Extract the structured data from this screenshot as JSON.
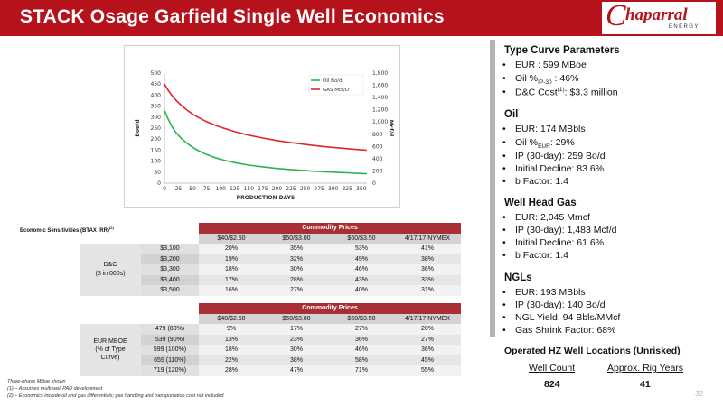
{
  "header": {
    "title": "STACK Osage Garfield Single Well Economics",
    "logo_text": "haparral",
    "logo_c": "C",
    "logo_sub": "ENERGY"
  },
  "chart_data": {
    "type": "line",
    "xlabel": "PRODUCTION DAYS",
    "ylabel_left": "Boe/d",
    "ylabel_right": "Mcf/d",
    "x_ticks": [
      0,
      25,
      50,
      75,
      100,
      125,
      150,
      175,
      200,
      225,
      250,
      275,
      300,
      325,
      350
    ],
    "y_left_ticks": [
      0,
      50,
      100,
      150,
      200,
      250,
      300,
      350,
      400,
      450,
      500
    ],
    "y_right_ticks": [
      "0",
      "200",
      "400",
      "600",
      "800",
      "1,000",
      "1,200",
      "1,400",
      "1,600",
      "1,800"
    ],
    "y_right_values": [
      0,
      200,
      400,
      600,
      800,
      1000,
      1200,
      1400,
      1600,
      1800
    ],
    "xlim": [
      0,
      360
    ],
    "ylim_left": [
      0,
      500
    ],
    "ylim_right": [
      0,
      1800
    ],
    "legend_position": "top-right",
    "series": [
      {
        "name": "Oil Bo/d",
        "color": "#2db34a",
        "axis": "left",
        "x": [
          0,
          5,
          10,
          15,
          20,
          30,
          40,
          50,
          60,
          75,
          90,
          100,
          125,
          150,
          175,
          200,
          225,
          250,
          275,
          300,
          325,
          350,
          360
        ],
        "y": [
          330,
          300,
          274,
          250,
          232,
          203,
          181,
          163,
          148,
          130,
          116,
          108,
          93,
          82,
          74,
          67,
          62,
          57,
          53,
          50,
          47,
          44,
          43
        ]
      },
      {
        "name": "GAS Mcf/D",
        "color": "#e0262b",
        "axis": "right",
        "x": [
          0,
          5,
          10,
          15,
          20,
          30,
          40,
          50,
          60,
          75,
          90,
          100,
          125,
          150,
          175,
          200,
          225,
          250,
          275,
          300,
          325,
          350,
          360
        ],
        "y": [
          1620,
          1540,
          1475,
          1415,
          1362,
          1270,
          1195,
          1130,
          1075,
          1005,
          948,
          915,
          842,
          785,
          737,
          697,
          663,
          633,
          607,
          584,
          564,
          545,
          538
        ]
      }
    ]
  },
  "sensitivities": {
    "title": "Economic Sensitivities (BTAX IRR)",
    "title_sup": "(2)",
    "commodity_header": "Commodity Prices",
    "columns": [
      "$40/$2.50",
      "$50/$3.00",
      "$60/$3.50",
      "4/17/17 NYMEX"
    ],
    "dc": {
      "label": "D&C",
      "label2": "($ in 000s)",
      "rows": [
        {
          "key": "$3,100",
          "values": [
            "20%",
            "35%",
            "53%",
            "41%"
          ]
        },
        {
          "key": "$3,200",
          "values": [
            "19%",
            "32%",
            "49%",
            "38%"
          ]
        },
        {
          "key": "$3,300",
          "values": [
            "18%",
            "30%",
            "46%",
            "36%"
          ]
        },
        {
          "key": "$3,400",
          "values": [
            "17%",
            "28%",
            "43%",
            "33%"
          ]
        },
        {
          "key": "$3,500",
          "values": [
            "16%",
            "27%",
            "40%",
            "31%"
          ]
        }
      ]
    },
    "eur": {
      "label": "EUR MBOE",
      "label2": "(% of Type",
      "label3": "Curve)",
      "rows": [
        {
          "key": "479 (80%)",
          "values": [
            "9%",
            "17%",
            "27%",
            "20%"
          ]
        },
        {
          "key": "539 (90%)",
          "values": [
            "13%",
            "23%",
            "36%",
            "27%"
          ]
        },
        {
          "key": "599 (100%)",
          "values": [
            "18%",
            "30%",
            "46%",
            "36%"
          ]
        },
        {
          "key": "659 (110%)",
          "values": [
            "22%",
            "38%",
            "58%",
            "45%"
          ]
        },
        {
          "key": "719 (120%)",
          "values": [
            "28%",
            "47%",
            "71%",
            "55%"
          ]
        }
      ]
    }
  },
  "footnotes": {
    "line1": "Three-phase MBoe shown",
    "line2": "(1) – Assumes multi-well PAD development",
    "line3": "(2) – Economics include oil and gas differentials; gas handling and transportation cost not included"
  },
  "page_number": "32",
  "type_curve": {
    "heading": "Type Curve Parameters",
    "eur": "EUR : 599 MBoe",
    "oil_pct_pre": "Oil %",
    "oil_pct_sub": "IP-30",
    "oil_pct_post": " : 46%",
    "dc_pre": "D&C Cost",
    "dc_sup": "(1)",
    "dc_post": ": $3.3 million"
  },
  "oil": {
    "heading": "Oil",
    "eur": "EUR: 174 MBbls",
    "pct_pre": "Oil %",
    "pct_sub": "EUR",
    "pct_post": ": 29%",
    "ip": "IP (30-day): 259 Bo/d",
    "decline": "Initial Decline: 83.6%",
    "b": "b Factor: 1.4"
  },
  "gas": {
    "heading": "Well Head Gas",
    "eur": "EUR: 2,045 Mmcf",
    "ip": "IP (30-day): 1,483 Mcf/d",
    "decline": "Initial Decline: 61.6%",
    "b": "b Factor: 1.4"
  },
  "ngl": {
    "heading": "NGLs",
    "eur": "EUR: 193 MBbls",
    "ip": "IP (30-day): 140 Bo/d",
    "yield": "NGL Yield: 94 Bbls/MMcf",
    "shrink": "Gas Shrink Factor: 68%"
  },
  "rigs": {
    "title": "Operated HZ Well Locations (Unrisked)",
    "col1": "Well Count",
    "col2": "Approx. Rig Years",
    "val1": "824",
    "val2": "41"
  }
}
